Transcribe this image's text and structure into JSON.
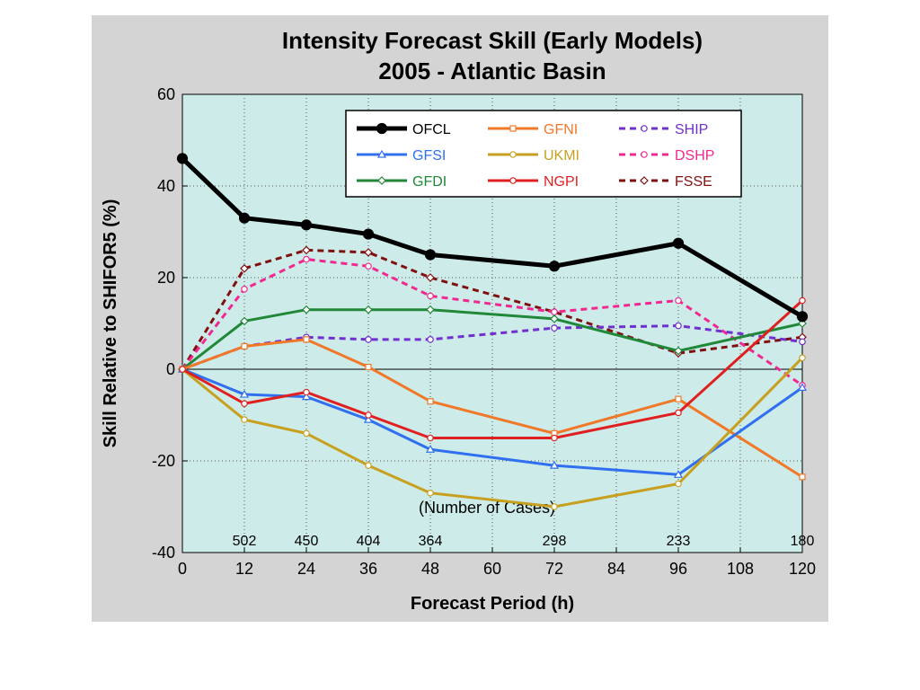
{
  "chart_data": {
    "type": "line",
    "title": "Intensity Forecast Skill (Early Models)",
    "subtitle": "2005 - Atlantic Basin",
    "xlabel": "Forecast Period (h)",
    "ylabel": "Skill Relative to SHIFOR5 (%)",
    "xlim": [
      0,
      120
    ],
    "ylim": [
      -40,
      60
    ],
    "xticks": [
      0,
      12,
      24,
      36,
      48,
      60,
      72,
      84,
      96,
      108,
      120
    ],
    "yticks": [
      -40,
      -20,
      0,
      20,
      40,
      60
    ],
    "grid": true,
    "legend_position": "top-right",
    "cases_label": "(Number of Cases)",
    "cases": [
      {
        "x": 12,
        "label": "502"
      },
      {
        "x": 24,
        "label": "450"
      },
      {
        "x": 36,
        "label": "404"
      },
      {
        "x": 48,
        "label": "364"
      },
      {
        "x": 72,
        "label": "298"
      },
      {
        "x": 96,
        "label": "233"
      },
      {
        "x": 120,
        "label": "180"
      }
    ],
    "x": [
      0,
      12,
      24,
      36,
      48,
      72,
      96,
      120
    ],
    "series": [
      {
        "name": "OFCL",
        "color": "#000000",
        "dash": "solid",
        "marker": "dot",
        "width": 5,
        "values": [
          46,
          33,
          31.5,
          29.5,
          25,
          22.5,
          27.5,
          11.5
        ]
      },
      {
        "name": "GFNI",
        "color": "#f07828",
        "dash": "solid",
        "marker": "square",
        "width": 3,
        "values": [
          0,
          5,
          6.5,
          0.5,
          -7,
          -14,
          -6.5,
          -23.5
        ]
      },
      {
        "name": "SHIP",
        "color": "#7030d0",
        "dash": "dashed",
        "marker": "circle",
        "width": 3,
        "values": [
          0,
          5,
          7,
          6.5,
          6.5,
          9,
          9.5,
          6
        ]
      },
      {
        "name": "GFSI",
        "color": "#3070f0",
        "dash": "solid",
        "marker": "triangle",
        "width": 3,
        "values": [
          0,
          -5.5,
          -6,
          -11,
          -17.5,
          -21,
          -23,
          -4
        ]
      },
      {
        "name": "UKMI",
        "color": "#c8a020",
        "dash": "solid",
        "marker": "circle",
        "width": 3,
        "values": [
          0,
          -11,
          -14,
          -21,
          -27,
          -30,
          -25,
          2.5
        ]
      },
      {
        "name": "DSHP",
        "color": "#f02890",
        "dash": "dashed",
        "marker": "circle",
        "width": 3,
        "values": [
          0,
          17.5,
          24,
          22.5,
          16,
          12.5,
          15,
          -3.5
        ]
      },
      {
        "name": "GFDI",
        "color": "#208838",
        "dash": "solid",
        "marker": "diamond",
        "width": 3,
        "values": [
          0,
          10.5,
          13,
          13,
          13,
          11,
          4,
          10
        ]
      },
      {
        "name": "NGPI",
        "color": "#e02020",
        "dash": "solid",
        "marker": "circle",
        "width": 3,
        "values": [
          0,
          -7.5,
          -5,
          -10,
          -15,
          -15,
          -9.5,
          15
        ]
      },
      {
        "name": "FSSE",
        "color": "#801010",
        "dash": "dashed",
        "marker": "diamond",
        "width": 3,
        "values": [
          0,
          22,
          26,
          25.5,
          20,
          12.5,
          3.5,
          7
        ]
      }
    ]
  }
}
